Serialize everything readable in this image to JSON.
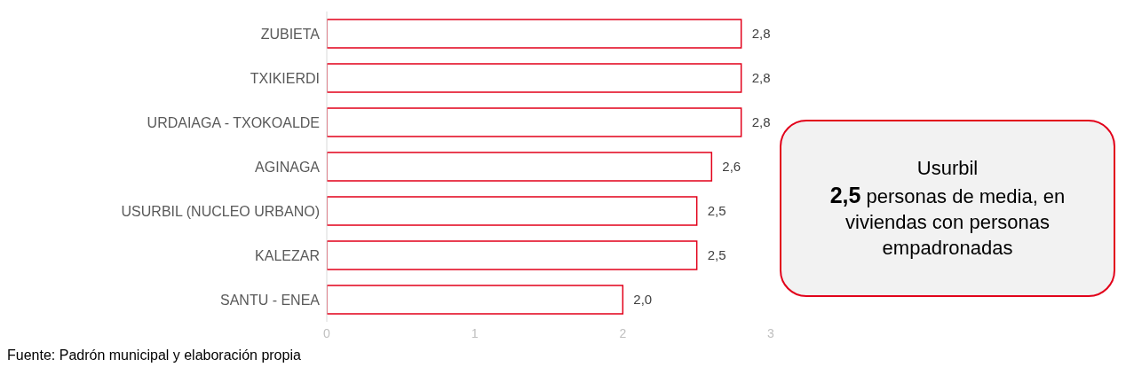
{
  "chart_data": {
    "type": "bar",
    "orientation": "horizontal",
    "categories": [
      "ZUBIETA",
      "TXIKIERDI",
      "URDAIAGA - TXOKOALDE",
      "AGINAGA",
      "USURBIL (NUCLEO URBANO)",
      "KALEZAR",
      "SANTU - ENEA"
    ],
    "values": [
      2.8,
      2.8,
      2.8,
      2.6,
      2.5,
      2.5,
      2.0
    ],
    "value_labels": [
      "2,8",
      "2,8",
      "2,8",
      "2,6",
      "2,5",
      "2,5",
      "2,0"
    ],
    "color": "#e2001a",
    "xlim": [
      0,
      3
    ],
    "xticks": [
      0,
      1,
      2,
      3
    ],
    "grid": false,
    "legend": false,
    "annotations": [
      "Usurbil",
      "2,5",
      "personas de media, en viviendas con personas empadronadas",
      "Fuente: Padrón municipal y elaboración propia"
    ]
  }
}
